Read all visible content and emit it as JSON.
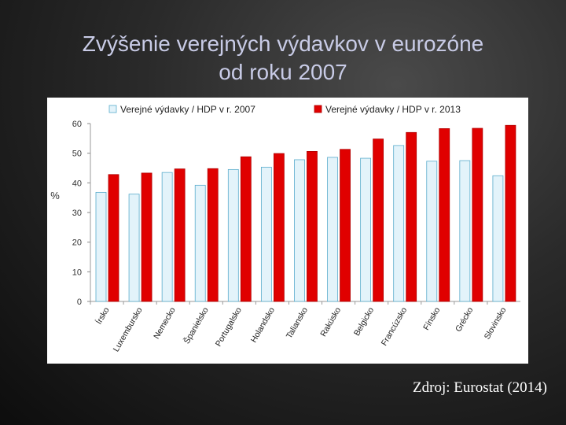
{
  "title_line1": "Zvýšenie verejných výdavkov v eurozóne",
  "title_line2": "od roku 2007",
  "source": "Zdroj: Eurostat (2014)",
  "colors": {
    "series_2007": "#e3f3fa",
    "series_2007_stroke": "#5aaccc",
    "series_2013": "#e00000",
    "series_2013_stroke": "#b00000"
  },
  "chart_data": {
    "type": "bar",
    "ylabel": "%",
    "ylim": [
      0,
      60
    ],
    "yticks": [
      "0",
      "10",
      "20",
      "30",
      "40",
      "50",
      "60"
    ],
    "grid": false,
    "legend": "top",
    "categories": [
      "Írsko",
      "Luxembursko",
      "Nemecko",
      "Španielsko",
      "Portugalsko",
      "Holandsko",
      "Taliansko",
      "Rakúsko",
      "Belgicko",
      "Francúzsko",
      "Fínsko",
      "Grécko",
      "Slovinsko"
    ],
    "series": [
      {
        "name": "Verejné výdavky / HDP v r. 2007",
        "values": [
          36.8,
          36.2,
          43.5,
          39.2,
          44.5,
          45.3,
          47.8,
          48.6,
          48.3,
          52.6,
          47.3,
          47.5,
          42.4
        ]
      },
      {
        "name": "Verejné výdavky / HDP v r. 2013",
        "values": [
          42.8,
          43.3,
          44.7,
          44.8,
          48.8,
          49.9,
          50.6,
          51.3,
          54.8,
          57.0,
          58.3,
          58.4,
          59.4
        ]
      }
    ]
  }
}
